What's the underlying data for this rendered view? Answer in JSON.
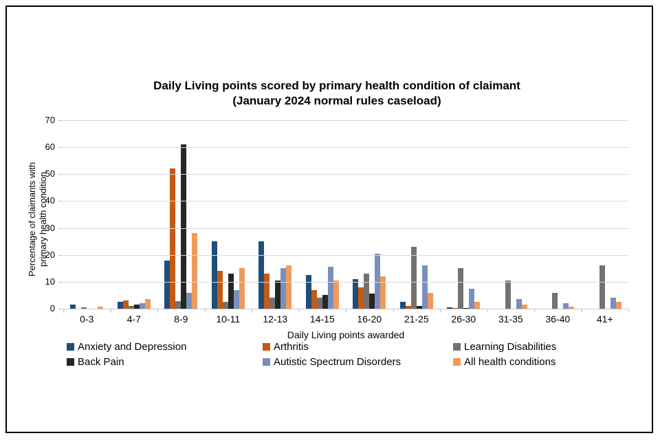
{
  "chart_data": {
    "type": "bar",
    "title_line1": "Daily Living points scored by primary health condition of claimant",
    "title_line2": "(January 2024 normal rules caseload)",
    "xlabel": "Daily Living points awarded",
    "ylabel_line1": "Percentage of claimants with",
    "ylabel_line2": "primary health condition",
    "ylim": [
      0,
      70
    ],
    "yticks": [
      0,
      10,
      20,
      30,
      40,
      50,
      60,
      70
    ],
    "grid": true,
    "legend_position": "bottom",
    "gridline_color": "#D9D9D9",
    "categories": [
      "0-3",
      "4-7",
      "8-9",
      "10-11",
      "12-13",
      "14-15",
      "16-20",
      "21-25",
      "26-30",
      "31-35",
      "36-40",
      "41+"
    ],
    "series": [
      {
        "name": "Anxiety and Depression",
        "color": "#1F4E79",
        "values": [
          1.5,
          2.5,
          18,
          25,
          25,
          12.5,
          11,
          2.5,
          0.5,
          0,
          0,
          0
        ]
      },
      {
        "name": "Arthritis",
        "color": "#C55A11",
        "values": [
          0,
          3,
          52,
          14,
          13,
          7,
          8,
          1,
          0.3,
          0,
          0,
          0
        ]
      },
      {
        "name": "Learning Disabilities",
        "color": "#767171",
        "values": [
          0.4,
          1,
          2.7,
          2.5,
          4,
          4,
          13,
          23,
          15,
          10.5,
          6,
          16
        ]
      },
      {
        "name": "Back Pain",
        "color": "#262626",
        "values": [
          0,
          1.5,
          61,
          13,
          10.5,
          5,
          5.5,
          1,
          0.3,
          0,
          0,
          0
        ]
      },
      {
        "name": "Autistic Spectrum Disorders",
        "color": "#7A8FBE",
        "values": [
          0,
          2,
          6,
          7,
          15,
          15.5,
          20.5,
          16,
          7.5,
          3.5,
          2,
          4
        ]
      },
      {
        "name": "All health conditions",
        "color": "#EF9A5C",
        "values": [
          0.7,
          3.5,
          28,
          15,
          16,
          10.5,
          12,
          6,
          2.5,
          1.5,
          0.8,
          2.5
        ]
      }
    ]
  }
}
